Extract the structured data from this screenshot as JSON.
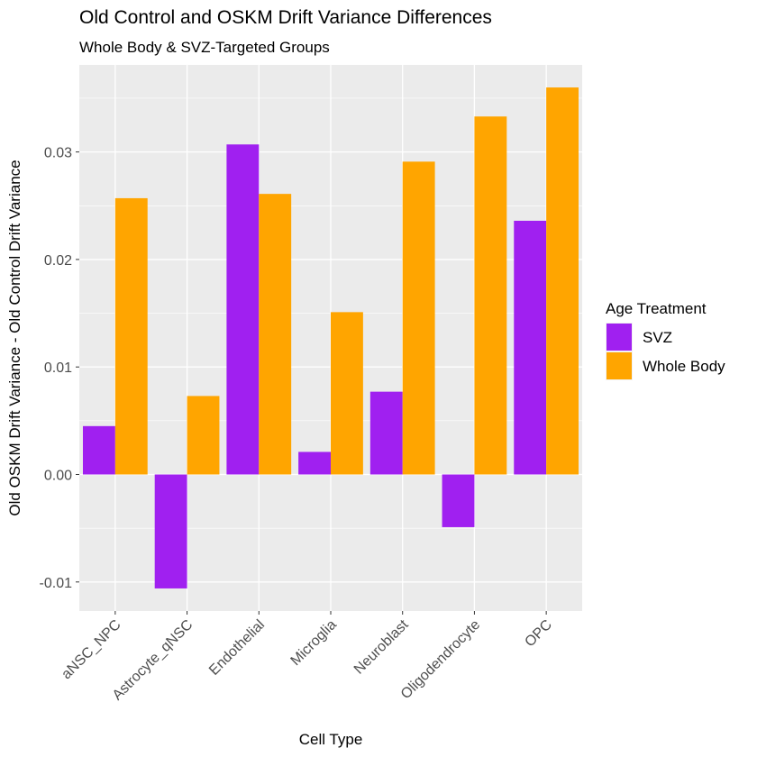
{
  "chart_data": {
    "type": "bar",
    "title": "Old Control and OSKM Drift Variance Differences",
    "subtitle": "Whole Body & SVZ-Targeted Groups",
    "xlabel": "Cell Type",
    "ylabel": "Old OSKM Drift Variance - Old Control Drift Variance",
    "categories": [
      "aNSC_NPC",
      "Astrocyte_qNSC",
      "Endothelial",
      "Microglia",
      "Neuroblast",
      "Oligodendrocyte",
      "OPC"
    ],
    "series": [
      {
        "name": "SVZ",
        "color": "#a020f0",
        "values": [
          0.0045,
          -0.0106,
          0.0307,
          0.0021,
          0.0077,
          -0.0049,
          0.0236
        ]
      },
      {
        "name": "Whole Body",
        "color": "#ffa500",
        "values": [
          0.0257,
          0.0073,
          0.0261,
          0.0151,
          0.0291,
          0.0333,
          0.036
        ]
      }
    ],
    "ylim": [
      -0.0127,
      0.0381
    ],
    "yticks": [
      -0.01,
      0.0,
      0.01,
      0.02,
      0.03
    ],
    "ytick_labels": [
      "-0.01",
      "0.00",
      "0.01",
      "0.02",
      "0.03"
    ],
    "legend": {
      "title": "Age Treatment",
      "position": "right"
    },
    "grid": true,
    "panel_background": "#ebebeb"
  }
}
